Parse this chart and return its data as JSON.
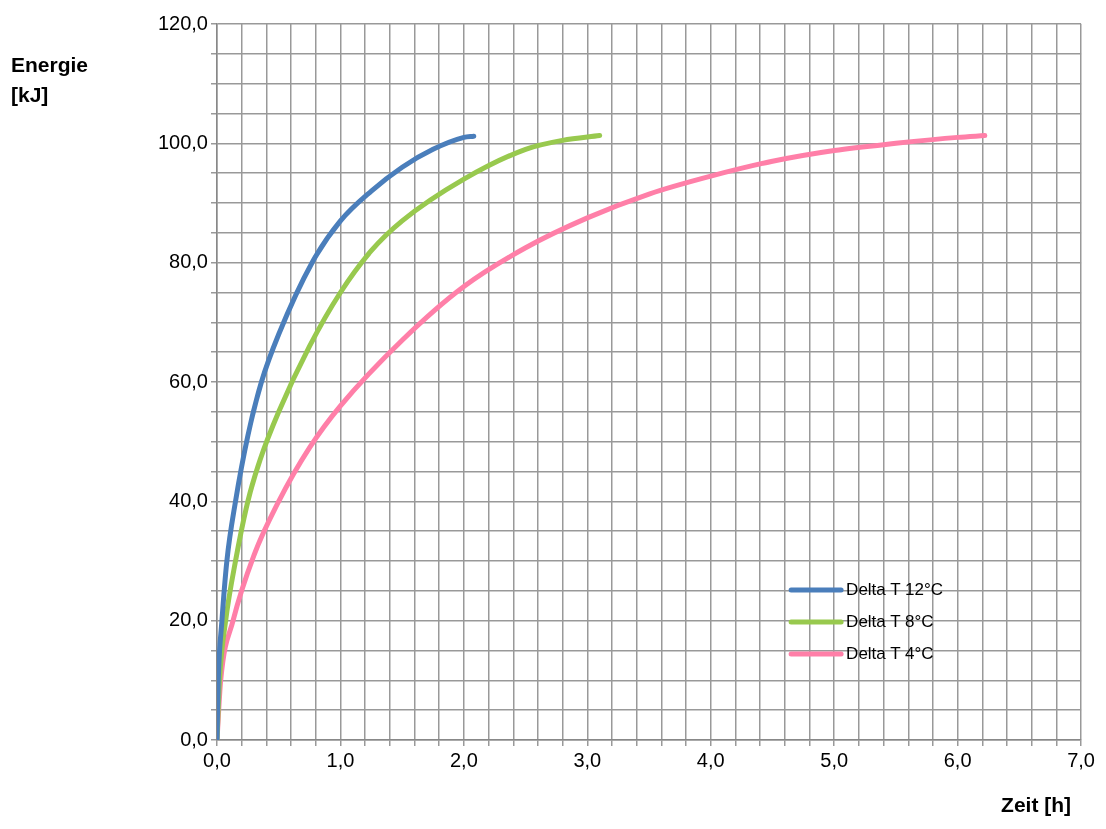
{
  "chart_data": {
    "type": "line",
    "xlabel": "Zeit [h]",
    "ylabel": "Energie [kJ]",
    "xlim": [
      0,
      7
    ],
    "ylim": [
      0,
      120
    ],
    "xticks": [
      {
        "value": 0,
        "label": "0,0"
      },
      {
        "value": 0.2,
        "label": null
      },
      {
        "value": 0.4,
        "label": null
      },
      {
        "value": 0.6,
        "label": null
      },
      {
        "value": 0.8,
        "label": null
      },
      {
        "value": 1,
        "label": "1,0"
      },
      {
        "value": 1.2,
        "label": null
      },
      {
        "value": 1.4,
        "label": null
      },
      {
        "value": 1.6,
        "label": null
      },
      {
        "value": 1.8,
        "label": null
      },
      {
        "value": 2,
        "label": "2,0"
      },
      {
        "value": 2.2,
        "label": null
      },
      {
        "value": 2.4,
        "label": null
      },
      {
        "value": 2.6,
        "label": null
      },
      {
        "value": 2.8,
        "label": null
      },
      {
        "value": 3,
        "label": "3,0"
      },
      {
        "value": 3.2,
        "label": null
      },
      {
        "value": 3.4,
        "label": null
      },
      {
        "value": 3.6,
        "label": null
      },
      {
        "value": 3.8,
        "label": null
      },
      {
        "value": 4,
        "label": "4,0"
      },
      {
        "value": 4.2,
        "label": null
      },
      {
        "value": 4.4,
        "label": null
      },
      {
        "value": 4.6,
        "label": null
      },
      {
        "value": 4.8,
        "label": null
      },
      {
        "value": 5,
        "label": "5,0"
      },
      {
        "value": 5.2,
        "label": null
      },
      {
        "value": 5.4,
        "label": null
      },
      {
        "value": 5.6,
        "label": null
      },
      {
        "value": 5.8,
        "label": null
      },
      {
        "value": 6,
        "label": "6,0"
      },
      {
        "value": 6.2,
        "label": null
      },
      {
        "value": 6.4,
        "label": null
      },
      {
        "value": 6.6,
        "label": null
      },
      {
        "value": 6.8,
        "label": null
      },
      {
        "value": 7,
        "label": "7,0"
      }
    ],
    "yticks": [
      {
        "value": 0,
        "label": "0,0"
      },
      {
        "value": 5,
        "label": null
      },
      {
        "value": 10,
        "label": null
      },
      {
        "value": 15,
        "label": null
      },
      {
        "value": 20,
        "label": "20,0"
      },
      {
        "value": 25,
        "label": null
      },
      {
        "value": 30,
        "label": null
      },
      {
        "value": 35,
        "label": null
      },
      {
        "value": 40,
        "label": "40,0"
      },
      {
        "value": 45,
        "label": null
      },
      {
        "value": 50,
        "label": null
      },
      {
        "value": 55,
        "label": null
      },
      {
        "value": 60,
        "label": "60,0"
      },
      {
        "value": 65,
        "label": null
      },
      {
        "value": 70,
        "label": null
      },
      {
        "value": 75,
        "label": null
      },
      {
        "value": 80,
        "label": "80,0"
      },
      {
        "value": 85,
        "label": null
      },
      {
        "value": 90,
        "label": null
      },
      {
        "value": 95,
        "label": null
      },
      {
        "value": 100,
        "label": "100,0"
      },
      {
        "value": 105,
        "label": null
      },
      {
        "value": 110,
        "label": null
      },
      {
        "value": 115,
        "label": null
      },
      {
        "value": 120,
        "label": "120,0"
      }
    ],
    "grid": true,
    "legend": "bottom right",
    "marker": "none",
    "line_style": "solid",
    "series": [
      {
        "name": "Delta T 12°C",
        "color": "#4a7ebb",
        "x": [
          0,
          0.01,
          0.04,
          0.08,
          0.15,
          0.25,
          0.36,
          0.5,
          0.77,
          1.0,
          1.25,
          1.5,
          1.75,
          2.0,
          2.08
        ],
        "values": [
          0,
          10,
          20,
          30,
          40,
          51,
          60,
          68,
          80,
          87,
          92,
          96,
          99,
          101,
          101.2
        ]
      },
      {
        "name": "Delta T 8°C",
        "color": "#98c94e",
        "x": [
          0,
          0.02,
          0.07,
          0.15,
          0.25,
          0.35,
          0.5,
          0.75,
          1.0,
          1.25,
          1.5,
          2.0,
          2.5,
          2.8,
          3.1
        ],
        "values": [
          0,
          10,
          20,
          30,
          40,
          47,
          55,
          66,
          75,
          82,
          87,
          94,
          99,
          100.5,
          101.3
        ]
      },
      {
        "name": "Delta T 4°C",
        "color": "#ff7fa8",
        "x": [
          0,
          0.03,
          0.13,
          0.3,
          0.5,
          0.75,
          1.0,
          1.5,
          2.0,
          2.5,
          3.0,
          3.5,
          4.0,
          4.5,
          5.0,
          5.5,
          6.0,
          6.22
        ],
        "values": [
          0,
          10,
          20,
          31,
          40,
          49,
          56,
          67,
          76,
          82.5,
          87.5,
          91.5,
          94.5,
          97,
          98.8,
          100,
          101,
          101.3
        ]
      }
    ]
  }
}
